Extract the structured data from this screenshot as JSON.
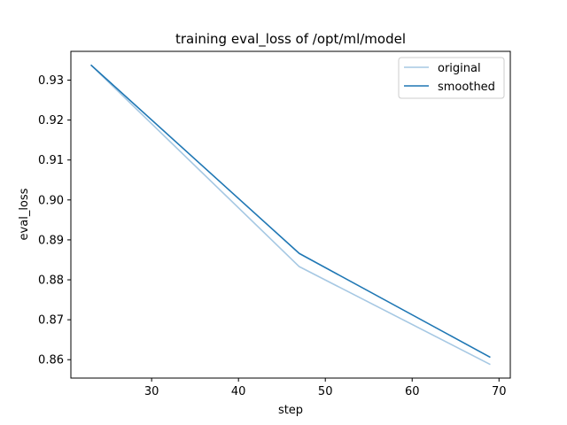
{
  "chart_data": {
    "type": "line",
    "title": "training eval_loss of /opt/ml/model",
    "xlabel": "step",
    "ylabel": "eval_loss",
    "xlim": [
      20.7,
      71.3
    ],
    "ylim": [
      0.8554,
      0.9372
    ],
    "xticks": [
      30,
      40,
      50,
      60,
      70
    ],
    "yticks": [
      0.86,
      0.87,
      0.88,
      0.89,
      0.9,
      0.91,
      0.92,
      0.93
    ],
    "ytick_labels": [
      "0.86",
      "0.87",
      "0.88",
      "0.89",
      "0.90",
      "0.91",
      "0.92",
      "0.93"
    ],
    "grid": false,
    "legend_position": "top-right",
    "x": [
      23,
      47,
      69
    ],
    "series": [
      {
        "name": "original",
        "values": [
          0.9338,
          0.8833,
          0.8588
        ],
        "color": "#a6c8e3"
      },
      {
        "name": "smoothed",
        "values": [
          0.9338,
          0.8866,
          0.8606
        ],
        "color": "#1f77b4"
      }
    ]
  }
}
